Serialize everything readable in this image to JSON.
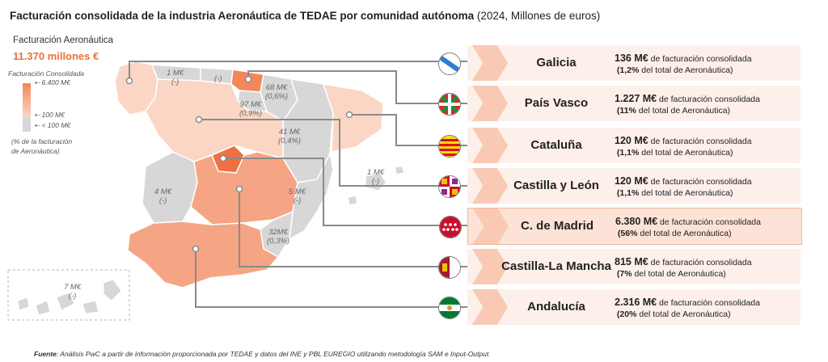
{
  "title": {
    "main": "Facturación consolidada de la industria Aeronáutica de TEDAE por comunidad autónoma",
    "sub": "(2024, Millones de euros)"
  },
  "legend": {
    "heading": "Facturación Aeronáutica",
    "total": "11.370 millones €",
    "scale_title": "Facturación Consolidada",
    "max": "6.400 M€",
    "mid": "100 M€",
    "min": "< 100 M€",
    "note_1": "(% de la facturación",
    "note_2": "de Aeronáutica)",
    "colors": {
      "high": "#f2875a",
      "low": "#fbd6c4",
      "none": "#d7d7d7"
    }
  },
  "map_labels": [
    {
      "value": "1 M€",
      "pct": "(-)"
    },
    {
      "value": "(-)",
      "pct": ""
    },
    {
      "value": "68 M€",
      "pct": "(0,6%)"
    },
    {
      "value": "97 M€",
      "pct": "(0,9%)"
    },
    {
      "value": "41 M€",
      "pct": "(0,4%)"
    },
    {
      "value": "1 M€",
      "pct": "(-)"
    },
    {
      "value": "4 M€",
      "pct": "(-)"
    },
    {
      "value": "5 M€",
      "pct": "(-)"
    },
    {
      "value": "32M€",
      "pct": "(0,3%)"
    },
    {
      "value": "7 M€",
      "pct": "(-)"
    }
  ],
  "panel_text": {
    "suffix": "de facturación consolidada",
    "total_suffix": "del total de Aeronáutica)"
  },
  "regions": [
    {
      "name": "Galicia",
      "value": "136 M€",
      "pct": "(1,2%"
    },
    {
      "name": "País Vasco",
      "value": "1.227 M€",
      "pct": "(11%"
    },
    {
      "name": "Cataluña",
      "value": "120 M€",
      "pct": "(1,1%"
    },
    {
      "name": "Castilla y León",
      "value": "120 M€",
      "pct": "(1,1%"
    },
    {
      "name": "C. de Madrid",
      "value": "6.380 M€",
      "pct": "(56%"
    },
    {
      "name": "Castilla-La Mancha",
      "value": "815 M€",
      "pct": "(7%"
    },
    {
      "name": "Andalucía",
      "value": "2.316 M€",
      "pct": "(20%"
    }
  ],
  "source": {
    "label": "Fuente",
    "text": ": Análisis PwC a partir de información proporcionada por TEDAE y datos del INE y PBL EUREGIO utilizando metodología SAM e Input-Output."
  }
}
